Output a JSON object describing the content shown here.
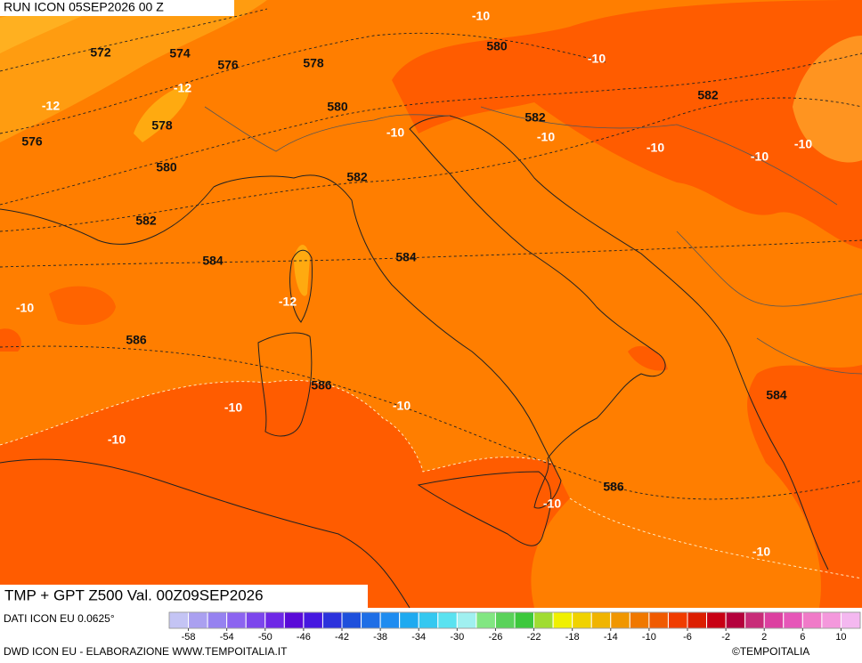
{
  "header": {
    "run": "RUN ICON 05SEP2026 00 Z"
  },
  "map": {
    "title": "TMP + GPT Z500 Val. 00Z09SEP2026",
    "geopotential_labels": [
      572,
      574,
      576,
      578,
      580,
      578,
      580,
      582,
      582,
      576,
      580,
      582,
      582,
      584,
      584,
      586,
      586,
      584,
      586
    ],
    "temperature_labels": [
      -10,
      -10,
      -12,
      -12,
      -10,
      -10,
      -10,
      -10,
      -10,
      -12,
      -10,
      -10,
      -10,
      -10,
      -10,
      -10
    ]
  },
  "legend": {
    "source": "DATI ICON EU 0.0625°",
    "range": [
      -60,
      12
    ],
    "ticks": [
      -58,
      -54,
      -50,
      -46,
      -42,
      -38,
      -34,
      -30,
      -26,
      -22,
      -18,
      -14,
      -10,
      -6,
      -2,
      2,
      6,
      10
    ],
    "colors": [
      "#c4c4f4",
      "#aaa0f0",
      "#9682f0",
      "#8c64f0",
      "#7c46ec",
      "#6e28e6",
      "#5a0ad8",
      "#4618e0",
      "#2c32dc",
      "#1e50dc",
      "#1e6ee6",
      "#1e8cf0",
      "#1eaaf0",
      "#34c8f0",
      "#5ae2f0",
      "#a0f0f0",
      "#82e682",
      "#5ad25a",
      "#3cc83c",
      "#a0dc32",
      "#f0f000",
      "#f0d200",
      "#f0b400",
      "#f09600",
      "#f07800",
      "#f05a00",
      "#f03c00",
      "#dc1e00",
      "#c80014",
      "#b4003c",
      "#c82c78",
      "#dc40a0",
      "#e656b8",
      "#f07ac8",
      "#f498dc",
      "#f4b8f0"
    ]
  },
  "footer": {
    "credit": "DWD ICON EU - ELABORAZIONE WWW.TEMPOITALIA.IT",
    "copyright": "©TEMPOITALIA"
  }
}
